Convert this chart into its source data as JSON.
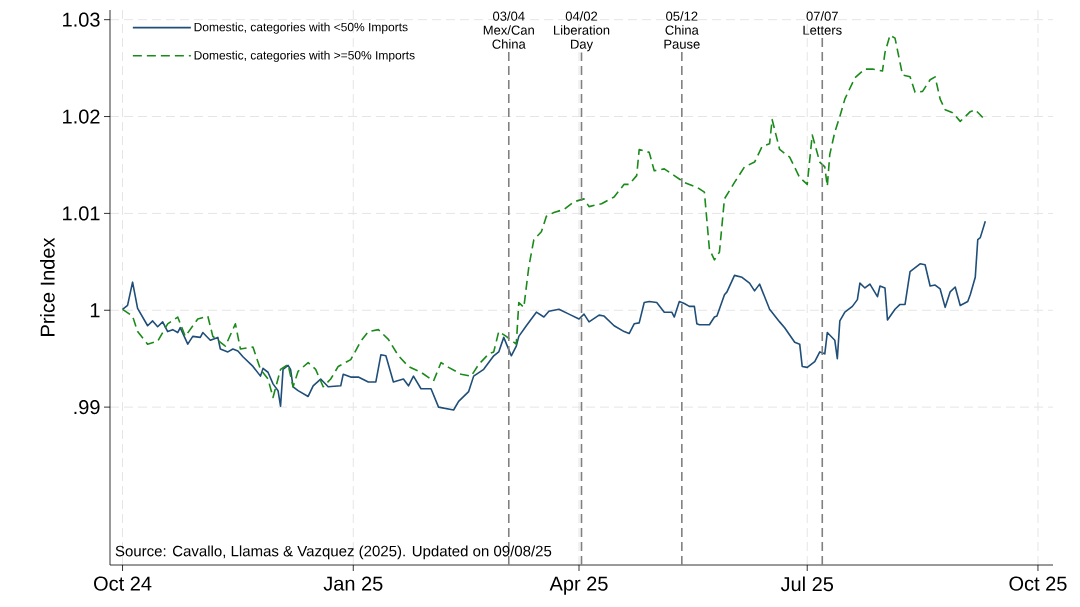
{
  "chart_data": {
    "type": "line",
    "ylabel": "Price Index",
    "xlim": [
      "2024-09-26",
      "2025-10-07"
    ],
    "ylim": [
      0.9737,
      1.031
    ],
    "xticks": [
      {
        "value": "2024-10-01",
        "label": "Oct 24"
      },
      {
        "value": "2025-01-01",
        "label": "Jan 25"
      },
      {
        "value": "2025-04-01",
        "label": "Apr 25"
      },
      {
        "value": "2025-07-01",
        "label": "Jul 25"
      },
      {
        "value": "2025-10-01",
        "label": "Oct 25"
      }
    ],
    "yticks": [
      {
        "value": 0.99,
        "label": ".99"
      },
      1,
      1.01,
      1.02,
      1.03
    ],
    "grid": true,
    "legend": "top left",
    "marker": "none",
    "series": [
      {
        "name": "Domestic, categories with <50% Imports",
        "color": "#1f4e79",
        "line_style": "solid",
        "x": [
          "2024-10-01",
          "2024-10-03",
          "2024-10-05",
          "2024-10-07",
          "2024-10-11",
          "2024-10-13",
          "2024-10-15",
          "2024-10-17",
          "2024-10-19",
          "2024-10-21",
          "2024-10-23",
          "2024-10-24",
          "2024-10-27",
          "2024-10-29",
          "2024-11-01",
          "2024-11-02",
          "2024-11-05",
          "2024-11-08",
          "2024-11-09",
          "2024-11-12",
          "2024-11-14",
          "2024-11-16",
          "2024-11-18",
          "2024-11-22",
          "2024-11-25",
          "2024-11-26",
          "2024-11-28",
          "2024-11-30",
          "2024-12-02",
          "2024-12-03",
          "2024-12-04",
          "2024-12-06",
          "2024-12-07",
          "2024-12-08",
          "2024-12-10",
          "2024-12-14",
          "2024-12-16",
          "2024-12-19",
          "2024-12-22",
          "2024-12-27",
          "2024-12-28",
          "2024-12-31",
          "2025-01-03",
          "2025-01-07",
          "2025-01-10",
          "2025-01-12",
          "2025-01-14",
          "2025-01-17",
          "2025-01-21",
          "2025-01-23",
          "2025-01-25",
          "2025-01-28",
          "2025-02-01",
          "2025-02-04",
          "2025-02-10",
          "2025-02-12",
          "2025-02-16",
          "2025-02-18",
          "2025-02-22",
          "2025-02-26",
          "2025-02-28",
          "2025-03-02",
          "2025-03-05",
          "2025-03-07",
          "2025-03-08",
          "2025-03-11",
          "2025-03-15",
          "2025-03-18",
          "2025-03-20",
          "2025-03-24",
          "2025-03-28",
          "2025-04-01",
          "2025-04-03",
          "2025-04-05",
          "2025-04-09",
          "2025-04-11",
          "2025-04-15",
          "2025-04-19",
          "2025-04-21",
          "2025-04-23",
          "2025-04-25",
          "2025-04-27",
          "2025-04-29",
          "2025-05-02",
          "2025-05-05",
          "2025-05-08",
          "2025-05-09",
          "2025-05-11",
          "2025-05-13",
          "2025-05-15",
          "2025-05-17",
          "2025-05-18",
          "2025-05-19",
          "2025-05-23",
          "2025-05-25",
          "2025-05-26",
          "2025-05-29",
          "2025-05-30",
          "2025-06-02",
          "2025-06-05",
          "2025-06-08",
          "2025-06-10",
          "2025-06-12",
          "2025-06-16",
          "2025-06-20",
          "2025-06-22",
          "2025-06-26",
          "2025-06-28",
          "2025-06-29",
          "2025-07-01",
          "2025-07-04",
          "2025-07-06",
          "2025-07-08",
          "2025-07-09",
          "2025-07-12",
          "2025-07-13",
          "2025-07-14",
          "2025-07-16",
          "2025-07-19",
          "2025-07-21",
          "2025-07-22",
          "2025-07-24",
          "2025-07-26",
          "2025-07-29",
          "2025-07-30",
          "2025-08-01",
          "2025-08-02",
          "2025-08-05",
          "2025-08-07",
          "2025-08-09",
          "2025-08-11",
          "2025-08-13",
          "2025-08-15",
          "2025-08-17",
          "2025-08-19",
          "2025-08-21",
          "2025-08-23",
          "2025-08-25",
          "2025-08-27",
          "2025-08-29",
          "2025-08-31",
          "2025-09-03",
          "2025-09-04",
          "2025-09-06",
          "2025-09-07",
          "2025-09-08",
          "2025-09-10"
        ],
        "values": [
          1.0001,
          1.0005,
          1.0029,
          1.0002,
          0.9984,
          0.9989,
          0.9983,
          0.9988,
          0.9978,
          0.998,
          0.9977,
          0.9982,
          0.9965,
          0.9973,
          0.9972,
          0.9977,
          0.9969,
          0.9972,
          0.996,
          0.9957,
          0.996,
          0.9958,
          0.9952,
          0.9942,
          0.9932,
          0.994,
          0.9936,
          0.9924,
          0.9917,
          0.9901,
          0.9939,
          0.9943,
          0.9939,
          0.9921,
          0.9917,
          0.9911,
          0.9922,
          0.9929,
          0.9921,
          0.9922,
          0.9934,
          0.9931,
          0.9931,
          0.9926,
          0.9926,
          0.9954,
          0.9953,
          0.9926,
          0.9929,
          0.9922,
          0.9932,
          0.9919,
          0.9919,
          0.99,
          0.9897,
          0.9906,
          0.9916,
          0.9932,
          0.9939,
          0.9953,
          0.9957,
          0.9972,
          0.9953,
          0.9963,
          0.9973,
          0.9984,
          0.9998,
          0.9993,
          0.9999,
          1.0001,
          0.9996,
          0.9991,
          0.9996,
          0.9988,
          0.9995,
          0.9994,
          0.9984,
          0.9978,
          0.9976,
          0.9986,
          0.9987,
          1.0008,
          1.0009,
          1.0008,
          0.9998,
          0.9998,
          0.9993,
          1.0009,
          1.0007,
          1.0004,
          1.0004,
          0.9986,
          0.9985,
          0.9985,
          0.9993,
          0.9994,
          1.0016,
          1.0019,
          1.0036,
          1.0034,
          1.0028,
          1.002,
          1.0027,
          1.0001,
          0.9988,
          0.9982,
          0.9967,
          0.9965,
          0.9942,
          0.9941,
          0.9947,
          0.9957,
          0.9955,
          0.9977,
          0.9969,
          0.995,
          0.9989,
          0.9998,
          1.0004,
          1.0011,
          1.0028,
          1.0023,
          1.0027,
          1.0014,
          1.0025,
          1.0023,
          0.999,
          1.0001,
          1.0006,
          1.0006,
          1.004,
          1.0044,
          1.0048,
          1.0047,
          1.0025,
          1.0026,
          1.0022,
          1.0003,
          1.0019,
          1.0024,
          1.0005,
          1.0009,
          1.0016,
          1.0034,
          1.0073,
          1.0075,
          1.0092
        ]
      },
      {
        "name": "Domestic, categories with >=50% Imports",
        "color": "#1a8a1a",
        "line_style": "dashed",
        "x": [
          "2024-10-01",
          "2024-10-05",
          "2024-10-07",
          "2024-10-11",
          "2024-10-15",
          "2024-10-19",
          "2024-10-23",
          "2024-10-26",
          "2024-10-31",
          "2024-11-04",
          "2024-11-06",
          "2024-11-11",
          "2024-11-15",
          "2024-11-17",
          "2024-11-22",
          "2024-11-25",
          "2024-11-28",
          "2024-11-30",
          "2024-12-03",
          "2024-12-06",
          "2024-12-08",
          "2024-12-10",
          "2024-12-14",
          "2024-12-17",
          "2024-12-20",
          "2024-12-23",
          "2024-12-26",
          "2024-12-31",
          "2025-01-04",
          "2025-01-07",
          "2025-01-11",
          "2025-01-15",
          "2025-01-19",
          "2025-01-23",
          "2025-01-28",
          "2025-02-02",
          "2025-02-05",
          "2025-02-08",
          "2025-02-13",
          "2025-02-17",
          "2025-02-20",
          "2025-02-24",
          "2025-02-26",
          "2025-02-28",
          "2025-03-03",
          "2025-03-07",
          "2025-03-08",
          "2025-03-10",
          "2025-03-12",
          "2025-03-14",
          "2025-03-17",
          "2025-03-19",
          "2025-03-22",
          "2025-03-26",
          "2025-03-30",
          "2025-04-03",
          "2025-04-05",
          "2025-04-10",
          "2025-04-15",
          "2025-04-19",
          "2025-04-21",
          "2025-04-24",
          "2025-04-25",
          "2025-04-29",
          "2025-05-01",
          "2025-05-05",
          "2025-05-09",
          "2025-05-13",
          "2025-05-18",
          "2025-05-21",
          "2025-05-23",
          "2025-05-25",
          "2025-05-27",
          "2025-05-29",
          "2025-06-02",
          "2025-06-06",
          "2025-06-10",
          "2025-06-13",
          "2025-06-16",
          "2025-06-17",
          "2025-06-20",
          "2025-06-24",
          "2025-06-28",
          "2025-07-01",
          "2025-07-03",
          "2025-07-06",
          "2025-07-08",
          "2025-07-09",
          "2025-07-10",
          "2025-07-12",
          "2025-07-14",
          "2025-07-16",
          "2025-07-20",
          "2025-07-24",
          "2025-07-27",
          "2025-07-31",
          "2025-08-01",
          "2025-08-03",
          "2025-08-05",
          "2025-08-08",
          "2025-08-11",
          "2025-08-13",
          "2025-08-16",
          "2025-08-19",
          "2025-08-21",
          "2025-08-23",
          "2025-08-25",
          "2025-08-28",
          "2025-08-31",
          "2025-09-04",
          "2025-09-06",
          "2025-09-09"
        ],
        "values": [
          1.0001,
          0.9994,
          0.9978,
          0.9965,
          0.9968,
          0.9986,
          0.9993,
          0.9973,
          0.9991,
          0.9994,
          0.9973,
          0.9963,
          0.9986,
          0.996,
          0.9962,
          0.9939,
          0.9929,
          0.991,
          0.9939,
          0.9944,
          0.9921,
          0.9937,
          0.9946,
          0.9939,
          0.9921,
          0.9929,
          0.9942,
          0.9949,
          0.9968,
          0.9978,
          0.998,
          0.997,
          0.9953,
          0.9942,
          0.9936,
          0.9927,
          0.9946,
          0.9941,
          0.9934,
          0.9932,
          0.9944,
          0.9955,
          0.9957,
          0.9978,
          0.9973,
          0.9965,
          1.0008,
          1.0003,
          1.0045,
          1.0073,
          1.0081,
          1.0097,
          1.0101,
          1.0104,
          1.0112,
          1.0115,
          1.0107,
          1.011,
          1.0117,
          1.013,
          1.013,
          1.0139,
          1.0166,
          1.0163,
          1.0144,
          1.0146,
          1.0139,
          1.0132,
          1.0127,
          1.0122,
          1.0063,
          1.0052,
          1.006,
          1.0115,
          1.0132,
          1.0148,
          1.0153,
          1.0169,
          1.0172,
          1.0197,
          1.0166,
          1.0158,
          1.0137,
          1.013,
          1.0181,
          1.0153,
          1.0148,
          1.0128,
          1.0161,
          1.0184,
          1.02,
          1.0218,
          1.024,
          1.0249,
          1.0249,
          1.0247,
          1.0266,
          1.0284,
          1.0281,
          1.0243,
          1.0241,
          1.0225,
          1.0226,
          1.0238,
          1.0241,
          1.0218,
          1.0207,
          1.0204,
          1.0195,
          1.0205,
          1.0207,
          1.0199
        ]
      }
    ],
    "ref_lines": [
      {
        "axis": "x",
        "value": "2025-03-04",
        "label": "03/04 Mex/Can China",
        "color": "#808080",
        "line_style": "dashed"
      },
      {
        "axis": "x",
        "value": "2025-04-02",
        "label": "04/02 Liberation Day",
        "color": "#808080",
        "line_style": "dashed"
      },
      {
        "axis": "x",
        "value": "2025-05-12",
        "label": "05/12 China Pause",
        "color": "#808080",
        "line_style": "dashed"
      },
      {
        "axis": "x",
        "value": "2025-07-07",
        "label": "07/07 Letters",
        "color": "#808080",
        "line_style": "dashed"
      }
    ],
    "annotations": [
      "Source: Cavallo, Llamas & Vazquez (2025). Updated on 09/08/25"
    ]
  }
}
